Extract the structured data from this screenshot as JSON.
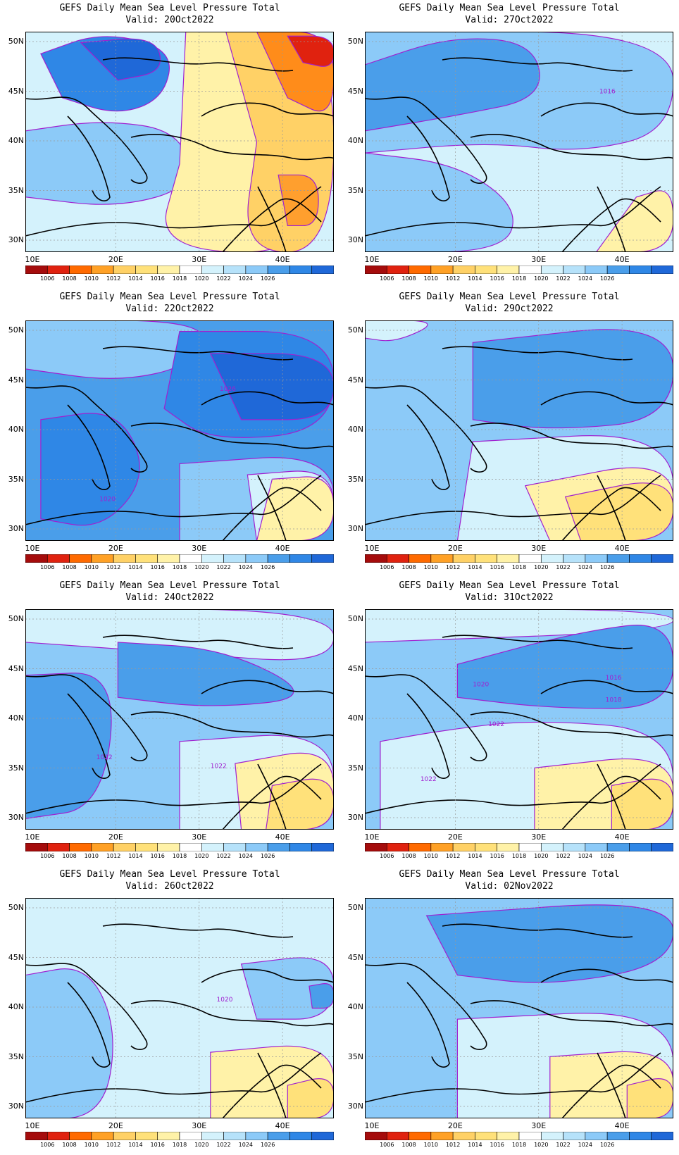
{
  "title_text": "GEFS Daily Mean Sea Level Pressure Total",
  "panels": [
    {
      "valid": "Valid: 20Oct2022",
      "bg": "#d4f2fc",
      "blobs": [
        {
          "c": "#2f87e6",
          "pts": [
            [
              0.05,
              0.9
            ],
            [
              0.25,
              1.0
            ],
            [
              0.48,
              0.92
            ],
            [
              0.45,
              0.7
            ],
            [
              0.3,
              0.62
            ],
            [
              0.12,
              0.7
            ]
          ]
        },
        {
          "c": "#1f68d8",
          "pts": [
            [
              0.18,
              0.95
            ],
            [
              0.42,
              0.98
            ],
            [
              0.45,
              0.82
            ],
            [
              0.3,
              0.78
            ]
          ]
        },
        {
          "c": "#8ccaf8",
          "pts": [
            [
              0.0,
              0.55
            ],
            [
              0.25,
              0.6
            ],
            [
              0.5,
              0.55
            ],
            [
              0.55,
              0.3
            ],
            [
              0.3,
              0.2
            ],
            [
              0.0,
              0.25
            ]
          ]
        },
        {
          "c": "#fff2a8",
          "pts": [
            [
              0.52,
              1.0
            ],
            [
              1.0,
              1.0
            ],
            [
              1.0,
              0.0
            ],
            [
              0.42,
              0.0
            ],
            [
              0.5,
              0.4
            ]
          ]
        },
        {
          "c": "#ffd166",
          "pts": [
            [
              0.65,
              1.0
            ],
            [
              1.0,
              1.0
            ],
            [
              1.0,
              0.0
            ],
            [
              0.7,
              0.0
            ],
            [
              0.75,
              0.5
            ]
          ]
        },
        {
          "c": "#ff8c1a",
          "pts": [
            [
              0.75,
              1.0
            ],
            [
              1.0,
              1.0
            ],
            [
              1.0,
              0.6
            ],
            [
              0.85,
              0.7
            ]
          ]
        },
        {
          "c": "#e0220f",
          "pts": [
            [
              0.85,
              0.98
            ],
            [
              1.0,
              0.98
            ],
            [
              1.0,
              0.83
            ],
            [
              0.9,
              0.86
            ]
          ]
        },
        {
          "c": "#ff9f2e",
          "pts": [
            [
              0.82,
              0.35
            ],
            [
              0.95,
              0.35
            ],
            [
              0.95,
              0.12
            ],
            [
              0.85,
              0.12
            ]
          ]
        }
      ]
    },
    {
      "valid": "Valid: 27Oct2022",
      "bg": "#d4f2fc",
      "blobs": [
        {
          "c": "#8ccaf8",
          "pts": [
            [
              0.0,
              1.0
            ],
            [
              1.0,
              1.0
            ],
            [
              1.0,
              0.55
            ],
            [
              0.7,
              0.45
            ],
            [
              0.4,
              0.5
            ],
            [
              0.0,
              0.45
            ]
          ]
        },
        {
          "c": "#4a9eea",
          "pts": [
            [
              0.0,
              0.85
            ],
            [
              0.28,
              0.98
            ],
            [
              0.55,
              0.95
            ],
            [
              0.58,
              0.7
            ],
            [
              0.3,
              0.62
            ],
            [
              0.0,
              0.55
            ]
          ]
        },
        {
          "c": "#8ccaf8",
          "pts": [
            [
              0.0,
              0.45
            ],
            [
              0.3,
              0.4
            ],
            [
              0.5,
              0.2
            ],
            [
              0.45,
              0.0
            ],
            [
              0.0,
              0.0
            ]
          ]
        },
        {
          "c": "#fff2a8",
          "pts": [
            [
              0.75,
              0.0
            ],
            [
              1.0,
              0.0
            ],
            [
              1.0,
              0.3
            ],
            [
              0.88,
              0.25
            ]
          ]
        }
      ]
    },
    {
      "valid": "Valid: 22Oct2022",
      "bg": "#4a9eea",
      "blobs": [
        {
          "c": "#8ccaf8",
          "pts": [
            [
              0.0,
              1.0
            ],
            [
              0.6,
              1.0
            ],
            [
              0.55,
              0.8
            ],
            [
              0.3,
              0.72
            ],
            [
              0.0,
              0.78
            ]
          ]
        },
        {
          "c": "#2f87e6",
          "pts": [
            [
              0.5,
              0.95
            ],
            [
              1.0,
              0.95
            ],
            [
              1.0,
              0.5
            ],
            [
              0.6,
              0.45
            ],
            [
              0.45,
              0.6
            ]
          ]
        },
        {
          "c": "#1f68d8",
          "pts": [
            [
              0.6,
              0.85
            ],
            [
              1.0,
              0.85
            ],
            [
              1.0,
              0.55
            ],
            [
              0.7,
              0.55
            ]
          ]
        },
        {
          "c": "#2f87e6",
          "pts": [
            [
              0.05,
              0.55
            ],
            [
              0.3,
              0.6
            ],
            [
              0.4,
              0.3
            ],
            [
              0.25,
              0.05
            ],
            [
              0.05,
              0.1
            ]
          ]
        },
        {
          "c": "#8ccaf8",
          "pts": [
            [
              0.5,
              0.35
            ],
            [
              1.0,
              0.4
            ],
            [
              1.0,
              0.0
            ],
            [
              0.5,
              0.0
            ]
          ]
        },
        {
          "c": "#d4f2fc",
          "pts": [
            [
              0.72,
              0.3
            ],
            [
              1.0,
              0.33
            ],
            [
              1.0,
              0.0
            ],
            [
              0.75,
              0.0
            ]
          ]
        },
        {
          "c": "#fff2a8",
          "pts": [
            [
              0.8,
              0.28
            ],
            [
              1.0,
              0.3
            ],
            [
              1.0,
              0.0
            ],
            [
              0.75,
              0.0
            ]
          ]
        }
      ]
    },
    {
      "valid": "Valid: 29Oct2022",
      "bg": "#8ccaf8",
      "blobs": [
        {
          "c": "#4a9eea",
          "pts": [
            [
              0.35,
              0.9
            ],
            [
              1.0,
              1.0
            ],
            [
              1.0,
              0.55
            ],
            [
              0.6,
              0.5
            ],
            [
              0.35,
              0.55
            ]
          ]
        },
        {
          "c": "#d4f2fc",
          "pts": [
            [
              0.0,
              1.0
            ],
            [
              0.25,
              1.0
            ],
            [
              0.1,
              0.9
            ],
            [
              0.0,
              0.92
            ]
          ]
        },
        {
          "c": "#d4f2fc",
          "pts": [
            [
              0.35,
              0.45
            ],
            [
              1.0,
              0.5
            ],
            [
              1.0,
              0.0
            ],
            [
              0.3,
              0.0
            ]
          ]
        },
        {
          "c": "#fff2a8",
          "pts": [
            [
              0.52,
              0.25
            ],
            [
              1.0,
              0.38
            ],
            [
              1.0,
              0.0
            ],
            [
              0.6,
              0.0
            ]
          ]
        },
        {
          "c": "#ffe17a",
          "pts": [
            [
              0.65,
              0.2
            ],
            [
              1.0,
              0.3
            ],
            [
              1.0,
              0.0
            ],
            [
              0.7,
              0.0
            ]
          ]
        }
      ]
    },
    {
      "valid": "Valid: 24Oct2022",
      "bg": "#8ccaf8",
      "blobs": [
        {
          "c": "#d4f2fc",
          "pts": [
            [
              0.0,
              1.0
            ],
            [
              1.0,
              1.0
            ],
            [
              1.0,
              0.75
            ],
            [
              0.5,
              0.8
            ],
            [
              0.0,
              0.85
            ]
          ]
        },
        {
          "c": "#4a9eea",
          "pts": [
            [
              0.3,
              0.85
            ],
            [
              0.65,
              0.82
            ],
            [
              0.95,
              0.6
            ],
            [
              0.6,
              0.55
            ],
            [
              0.3,
              0.6
            ]
          ]
        },
        {
          "c": "#4a9eea",
          "pts": [
            [
              0.0,
              0.7
            ],
            [
              0.3,
              0.72
            ],
            [
              0.25,
              0.1
            ],
            [
              0.0,
              0.05
            ]
          ]
        },
        {
          "c": "#d4f2fc",
          "pts": [
            [
              0.5,
              0.4
            ],
            [
              1.0,
              0.45
            ],
            [
              1.0,
              0.0
            ],
            [
              0.5,
              0.0
            ]
          ]
        },
        {
          "c": "#fff2a8",
          "pts": [
            [
              0.68,
              0.3
            ],
            [
              1.0,
              0.38
            ],
            [
              1.0,
              0.0
            ],
            [
              0.7,
              0.0
            ]
          ]
        },
        {
          "c": "#ffe17a",
          "pts": [
            [
              0.8,
              0.2
            ],
            [
              1.0,
              0.25
            ],
            [
              1.0,
              0.0
            ],
            [
              0.78,
              0.0
            ]
          ]
        }
      ]
    },
    {
      "valid": "Valid: 31Oct2022",
      "bg": "#8ccaf8",
      "blobs": [
        {
          "c": "#d4f2fc",
          "pts": [
            [
              0.0,
              1.0
            ],
            [
              1.0,
              1.0
            ],
            [
              1.0,
              0.9
            ],
            [
              0.0,
              0.85
            ]
          ]
        },
        {
          "c": "#4a9eea",
          "pts": [
            [
              0.3,
              0.75
            ],
            [
              0.7,
              0.9
            ],
            [
              1.0,
              0.95
            ],
            [
              1.0,
              0.55
            ],
            [
              0.6,
              0.55
            ],
            [
              0.3,
              0.6
            ]
          ]
        },
        {
          "c": "#d4f2fc",
          "pts": [
            [
              0.05,
              0.4
            ],
            [
              0.25,
              0.45
            ],
            [
              0.55,
              0.5
            ],
            [
              1.0,
              0.45
            ],
            [
              1.0,
              0.0
            ],
            [
              0.05,
              0.0
            ]
          ]
        },
        {
          "c": "#fff2a8",
          "pts": [
            [
              0.55,
              0.28
            ],
            [
              1.0,
              0.35
            ],
            [
              1.0,
              0.0
            ],
            [
              0.55,
              0.0
            ]
          ]
        },
        {
          "c": "#ffe17a",
          "pts": [
            [
              0.8,
              0.2
            ],
            [
              1.0,
              0.25
            ],
            [
              1.0,
              0.0
            ],
            [
              0.8,
              0.0
            ]
          ]
        }
      ]
    },
    {
      "valid": "Valid: 26Oct2022",
      "bg": "#d4f2fc",
      "blobs": [
        {
          "c": "#8ccaf8",
          "pts": [
            [
              0.0,
              0.65
            ],
            [
              0.2,
              0.7
            ],
            [
              0.3,
              0.4
            ],
            [
              0.25,
              0.0
            ],
            [
              0.0,
              0.0
            ]
          ]
        },
        {
          "c": "#8ccaf8",
          "pts": [
            [
              0.7,
              0.7
            ],
            [
              1.0,
              0.75
            ],
            [
              1.0,
              0.45
            ],
            [
              0.75,
              0.45
            ]
          ]
        },
        {
          "c": "#4a9eea",
          "pts": [
            [
              0.92,
              0.6
            ],
            [
              1.0,
              0.62
            ],
            [
              1.0,
              0.5
            ],
            [
              0.93,
              0.5
            ]
          ]
        },
        {
          "c": "#fff2a8",
          "pts": [
            [
              0.6,
              0.3
            ],
            [
              1.0,
              0.35
            ],
            [
              1.0,
              0.0
            ],
            [
              0.6,
              0.0
            ]
          ]
        },
        {
          "c": "#ffe17a",
          "pts": [
            [
              0.85,
              0.15
            ],
            [
              1.0,
              0.2
            ],
            [
              1.0,
              0.0
            ],
            [
              0.85,
              0.0
            ]
          ]
        }
      ]
    },
    {
      "valid": "Valid: 02Nov2022",
      "bg": "#8ccaf8",
      "blobs": [
        {
          "c": "#4a9eea",
          "pts": [
            [
              0.2,
              0.92
            ],
            [
              1.0,
              1.0
            ],
            [
              1.0,
              0.7
            ],
            [
              0.6,
              0.6
            ],
            [
              0.3,
              0.65
            ]
          ]
        },
        {
          "c": "#d4f2fc",
          "pts": [
            [
              0.3,
              0.45
            ],
            [
              1.0,
              0.5
            ],
            [
              1.0,
              0.0
            ],
            [
              0.3,
              0.0
            ]
          ]
        },
        {
          "c": "#fff2a8",
          "pts": [
            [
              0.6,
              0.28
            ],
            [
              1.0,
              0.32
            ],
            [
              1.0,
              0.0
            ],
            [
              0.6,
              0.0
            ]
          ]
        },
        {
          "c": "#ffe17a",
          "pts": [
            [
              0.85,
              0.15
            ],
            [
              1.0,
              0.2
            ],
            [
              1.0,
              0.0
            ],
            [
              0.85,
              0.0
            ]
          ]
        }
      ]
    }
  ],
  "lat_ticks": [
    "50N",
    "45N",
    "40N",
    "35N",
    "30N"
  ],
  "lon_ticks": [
    "10E",
    "20E",
    "30E",
    "40E"
  ],
  "colorbar": {
    "colors": [
      "#a50c0c",
      "#e0220f",
      "#ff6a00",
      "#ffa126",
      "#ffd166",
      "#ffe17a",
      "#fff2a8",
      "#ffffff",
      "#d4f2fc",
      "#b6e2fa",
      "#8ccaf8",
      "#4a9eea",
      "#2f87e6",
      "#1f68d8"
    ],
    "labels": [
      "1006",
      "1008",
      "1010",
      "1012",
      "1014",
      "1016",
      "1018",
      "1020",
      "1022",
      "1024",
      "1026"
    ]
  },
  "contour_labels": [
    {
      "panel": 2,
      "text": "1020"
    },
    {
      "panel": 2,
      "text": "1026"
    },
    {
      "panel": 1,
      "text": "1016"
    },
    {
      "panel": 4,
      "text": "1022"
    },
    {
      "panel": 4,
      "text": "1022"
    },
    {
      "panel": 5,
      "text": "1022"
    },
    {
      "panel": 5,
      "text": "1022"
    },
    {
      "panel": 5,
      "text": "1020"
    },
    {
      "panel": 5,
      "text": "1018"
    },
    {
      "panel": 5,
      "text": "1016"
    },
    {
      "panel": 6,
      "text": "1020"
    }
  ]
}
